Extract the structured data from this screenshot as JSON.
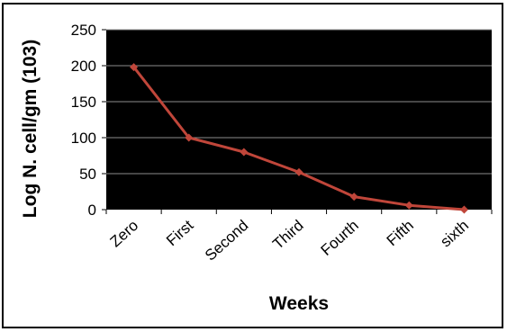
{
  "chart_data": {
    "type": "line",
    "title": "",
    "xlabel": "Weeks",
    "ylabel": "Log N. cell/gm (103)",
    "categories": [
      "Zero",
      "First",
      "Second",
      "Third",
      "Fourth",
      "Fifth",
      "sixth"
    ],
    "series": [
      {
        "values": [
          198,
          100,
          80,
          52,
          18,
          6,
          0
        ]
      }
    ],
    "ylim": [
      0,
      250
    ],
    "yticks": [
      0,
      50,
      100,
      150,
      200,
      250
    ],
    "grid": true,
    "legend": "none",
    "colors": {
      "plot_background": "#000000",
      "grid": "#8c8c8c",
      "line": "#c0463a",
      "marker": "#c0463a"
    }
  }
}
